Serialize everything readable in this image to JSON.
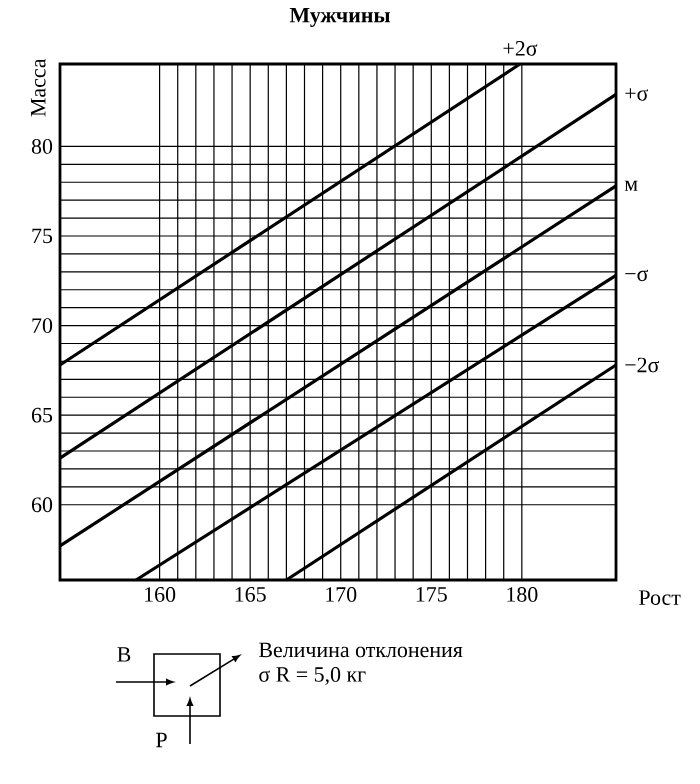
{
  "chart_data": {
    "type": "line",
    "title": "Мужчины",
    "xlabel": "Рост",
    "ylabel": "Масса",
    "xlim": [
      154.5,
      185.2
    ],
    "ylim": [
      55.8,
      84.6
    ],
    "xticks": [
      160,
      165,
      170,
      175,
      180
    ],
    "yticks": [
      60,
      65,
      70,
      75,
      80
    ],
    "grid": true,
    "legend": false,
    "marker": "none",
    "line_style": "solid",
    "series": [
      {
        "name": "+2σ",
        "color": "#000000",
        "x": [
          154.5,
          179.9
        ],
        "values": [
          67.8,
          84.6
        ]
      },
      {
        "name": "+σ",
        "color": "#000000",
        "x": [
          154.5,
          185.2
        ],
        "values": [
          62.6,
          82.9
        ]
      },
      {
        "name": "м",
        "color": "#000000",
        "x": [
          154.5,
          185.2
        ],
        "values": [
          57.7,
          77.8
        ]
      },
      {
        "name": "−σ",
        "color": "#000000",
        "x": [
          158.7,
          185.2
        ],
        "values": [
          55.8,
          72.8
        ]
      },
      {
        "name": "−2σ",
        "color": "#000000",
        "x": [
          167.0,
          185.2
        ],
        "values": [
          55.8,
          67.8
        ]
      }
    ],
    "annotations": [
      "Величина отклонения",
      "σ R = 5,0 кг",
      "В",
      "Р"
    ]
  }
}
